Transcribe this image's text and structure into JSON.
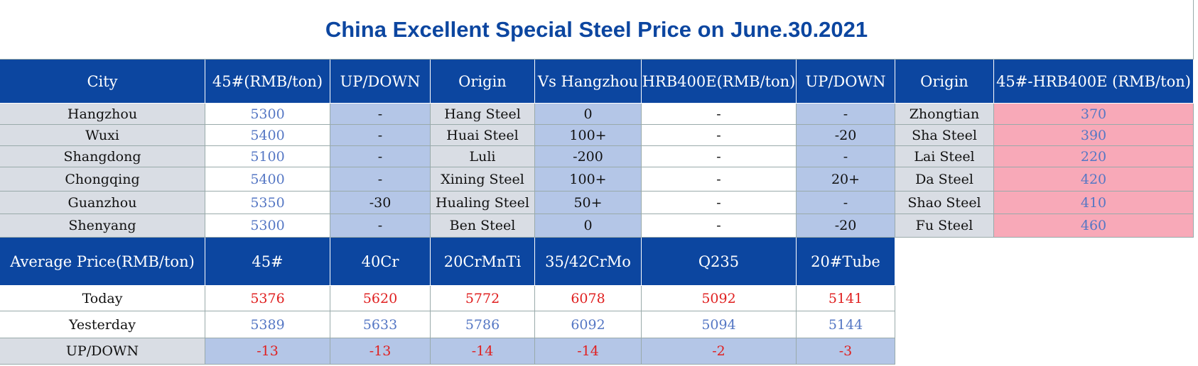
{
  "title": "China Excellent Special Steel Price on June.30.2021",
  "table": {
    "header": [
      "City",
      "45#(RMB/ton)",
      "UP/DOWN",
      "Origin",
      "Vs Hangzhou",
      "HRB400E(RMB/ton)",
      "UP/DOWN",
      "Origin",
      "45#-HRB400E (RMB/ton)"
    ],
    "rows": [
      [
        "Hangzhou",
        "5300",
        "-",
        "Hang Steel",
        "0",
        "-",
        "-",
        "Zhongtian",
        "370"
      ],
      [
        "Wuxi",
        "5400",
        "-",
        "Huai Steel",
        "100+",
        "-",
        "-20",
        "Sha Steel",
        "390"
      ],
      [
        "Shangdong",
        "5100",
        "-",
        "Luli",
        "-200",
        "-",
        "-",
        "Lai Steel",
        "220"
      ],
      [
        "Chongqing",
        "5400",
        "-",
        "Xining Steel",
        "100+",
        "-",
        "20+",
        "Da Steel",
        "420"
      ],
      [
        "Guanzhou",
        "5350",
        "-30",
        "Hualing Steel",
        "50+",
        "-",
        "-",
        "Shao Steel",
        "410"
      ],
      [
        "Shenyang",
        "5300",
        "-",
        "Ben Steel",
        "0",
        "-",
        "-20",
        "Fu Steel",
        "460"
      ]
    ]
  },
  "average": {
    "header": [
      "Average Price(RMB/ton)",
      "45#",
      "40Cr",
      "20CrMnTi",
      "35/42CrMo",
      "Q235",
      "20#Tube"
    ],
    "rows": [
      [
        "Today",
        "5376",
        "5620",
        "5772",
        "6078",
        "5092",
        "5141"
      ],
      [
        "Yesterday",
        "5389",
        "5633",
        "5786",
        "6092",
        "5094",
        "5144"
      ],
      [
        "UP/DOWN",
        "-13",
        "-13",
        "-14",
        "-14",
        "-2",
        "-3"
      ]
    ]
  }
}
